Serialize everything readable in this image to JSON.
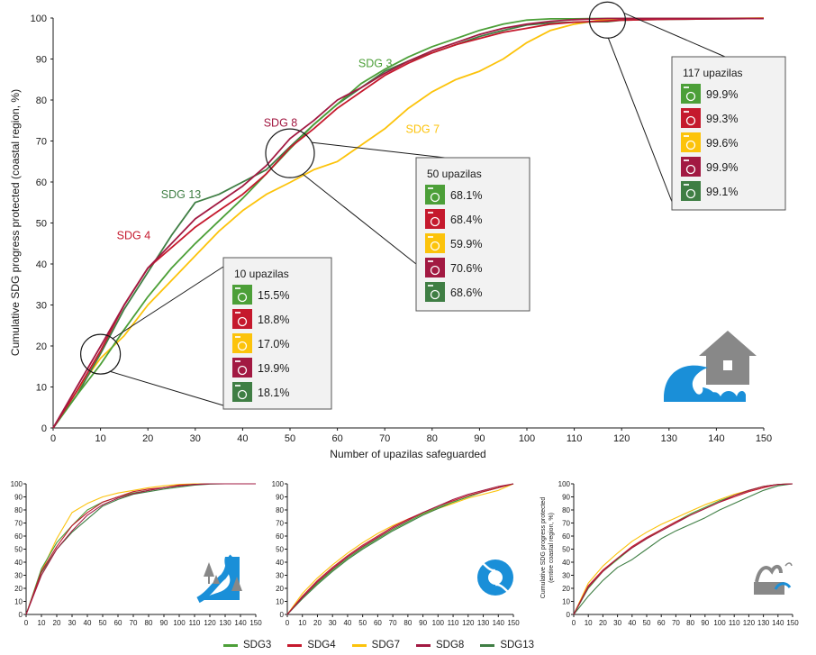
{
  "chart_data": [
    {
      "id": "main",
      "type": "line",
      "xlabel": "Number of upazilas safeguarded",
      "ylabel": "Cumulative SDG progress protected (coastal region, %)",
      "xlim": [
        0,
        150
      ],
      "ylim": [
        0,
        100
      ],
      "xticks": [
        0,
        10,
        20,
        30,
        40,
        50,
        60,
        70,
        80,
        90,
        100,
        110,
        120,
        130,
        140,
        150
      ],
      "yticks": [
        0,
        10,
        20,
        30,
        40,
        50,
        60,
        70,
        80,
        90,
        100
      ],
      "grid": false,
      "series": [
        {
          "name": "SDG 3",
          "key": "sdg3",
          "x": [
            0,
            5,
            10,
            15,
            20,
            25,
            30,
            35,
            40,
            45,
            50,
            55,
            60,
            65,
            70,
            75,
            80,
            85,
            90,
            95,
            100,
            105,
            110,
            115,
            117,
            120,
            130,
            140,
            150
          ],
          "y": [
            0,
            8,
            15.5,
            24,
            32,
            39,
            45,
            50.5,
            56,
            62,
            68.1,
            74,
            79,
            84,
            87.5,
            90.5,
            93,
            95,
            97,
            98.5,
            99.5,
            99.8,
            99.8,
            99.9,
            99.9,
            99.9,
            99.9,
            99.9,
            99.9
          ]
        },
        {
          "name": "SDG 4",
          "key": "sdg4",
          "x": [
            0,
            5,
            10,
            15,
            20,
            25,
            30,
            35,
            40,
            45,
            50,
            55,
            60,
            65,
            70,
            75,
            80,
            85,
            90,
            95,
            100,
            105,
            110,
            115,
            117,
            120,
            130,
            140,
            150
          ],
          "y": [
            0,
            9,
            18.8,
            30,
            39,
            44,
            49,
            53,
            57,
            62,
            68.4,
            73,
            78,
            82,
            86,
            89,
            91.5,
            93.5,
            95,
            96.5,
            97.5,
            98.5,
            99,
            99.2,
            99.3,
            99.5,
            99.7,
            99.8,
            99.9
          ]
        },
        {
          "name": "SDG 7",
          "key": "sdg7",
          "x": [
            0,
            5,
            10,
            15,
            20,
            25,
            30,
            35,
            40,
            45,
            50,
            55,
            60,
            65,
            70,
            75,
            80,
            85,
            90,
            95,
            100,
            105,
            110,
            115,
            117,
            120,
            130,
            140,
            150
          ],
          "y": [
            0,
            9,
            17,
            22.5,
            30,
            36,
            42,
            48,
            53,
            57,
            59.9,
            63,
            65,
            69,
            73,
            78,
            82,
            85,
            87,
            90,
            94,
            97,
            98.5,
            99.4,
            99.6,
            99.8,
            99.9,
            99.9,
            100
          ]
        },
        {
          "name": "SDG 8",
          "key": "sdg8",
          "x": [
            0,
            5,
            10,
            15,
            20,
            25,
            30,
            35,
            40,
            45,
            50,
            55,
            60,
            65,
            70,
            75,
            80,
            85,
            90,
            95,
            100,
            105,
            110,
            115,
            117,
            120,
            130,
            140,
            150
          ],
          "y": [
            0,
            10,
            19.9,
            30,
            39,
            45,
            51,
            55,
            59,
            64,
            70.6,
            75,
            80,
            83,
            86.5,
            89.5,
            92,
            94,
            96,
            97.5,
            98.5,
            99.2,
            99.6,
            99.8,
            99.9,
            99.9,
            99.9,
            99.9,
            99.9
          ]
        },
        {
          "name": "SDG 13",
          "key": "sdg13",
          "x": [
            0,
            5,
            10,
            15,
            20,
            25,
            30,
            35,
            40,
            45,
            50,
            55,
            60,
            65,
            70,
            75,
            80,
            85,
            90,
            95,
            100,
            105,
            110,
            115,
            117,
            120,
            130,
            140,
            150
          ],
          "y": [
            0,
            8,
            18.1,
            29,
            38,
            47,
            55,
            57,
            60,
            63,
            68.6,
            74,
            79,
            83,
            87,
            89.5,
            91.5,
            93.5,
            95.5,
            97,
            98.3,
            98.8,
            99,
            99.1,
            99.1,
            99.5,
            99.7,
            99.8,
            99.9
          ]
        }
      ],
      "line_labels": [
        {
          "text": "SDG 3",
          "key": "sdg3",
          "x": 68,
          "y": 88
        },
        {
          "text": "SDG 8",
          "key": "sdg8",
          "x": 48,
          "y": 73.5
        },
        {
          "text": "SDG 7",
          "key": "sdg7",
          "x": 78,
          "y": 72
        },
        {
          "text": "SDG 13",
          "key": "sdg13",
          "x": 27,
          "y": 56
        },
        {
          "text": "SDG 4",
          "key": "sdg4",
          "x": 17,
          "y": 46
        }
      ],
      "callouts": [
        {
          "title": "10 upazilas",
          "at_x": 10,
          "at_y": 18,
          "values": [
            "15.5%",
            "18.8%",
            "17.0%",
            "19.9%",
            "18.1%"
          ]
        },
        {
          "title": "50 upazilas",
          "at_x": 50,
          "at_y": 67,
          "values": [
            "68.1%",
            "68.4%",
            "59.9%",
            "70.6%",
            "68.6%"
          ]
        },
        {
          "title": "117 upazilas",
          "at_x": 117,
          "at_y": 99.5,
          "values": [
            "99.9%",
            "99.3%",
            "99.6%",
            "99.9%",
            "99.1%"
          ]
        }
      ],
      "icon": "coastal-flood-house-icon"
    },
    {
      "id": "riverine",
      "type": "line",
      "xlim": [
        0,
        150
      ],
      "ylim": [
        0,
        100
      ],
      "xticks": [
        0,
        10,
        20,
        30,
        40,
        50,
        60,
        70,
        80,
        90,
        100,
        110,
        120,
        130,
        140,
        150
      ],
      "yticks": [
        0,
        10,
        20,
        30,
        40,
        50,
        60,
        70,
        80,
        90,
        100
      ],
      "series": [
        {
          "name": "SDG3",
          "key": "sdg3",
          "x": [
            0,
            10,
            20,
            30,
            40,
            50,
            60,
            70,
            80,
            90,
            100,
            110,
            120,
            130,
            140,
            150
          ],
          "y": [
            0,
            35,
            55,
            68,
            80,
            86,
            90,
            93,
            95,
            97,
            98.5,
            99.5,
            100,
            100,
            100,
            100
          ]
        },
        {
          "name": "SDG4",
          "key": "sdg4",
          "x": [
            0,
            10,
            20,
            30,
            40,
            50,
            60,
            70,
            80,
            90,
            100,
            110,
            120,
            130,
            140,
            150
          ],
          "y": [
            0,
            33,
            52,
            68,
            78,
            86,
            90,
            94,
            96,
            97,
            99,
            99.5,
            100,
            100,
            100,
            100
          ]
        },
        {
          "name": "SDG7",
          "key": "sdg7",
          "x": [
            0,
            10,
            20,
            30,
            40,
            50,
            60,
            70,
            80,
            90,
            100,
            110,
            120,
            130,
            140,
            150
          ],
          "y": [
            0,
            33,
            58,
            78,
            85,
            90,
            93,
            95,
            97,
            98.5,
            99.5,
            100,
            100,
            100,
            100,
            100
          ]
        },
        {
          "name": "SDG8",
          "key": "sdg8",
          "x": [
            0,
            10,
            20,
            30,
            40,
            50,
            60,
            70,
            80,
            90,
            100,
            110,
            120,
            130,
            140,
            150
          ],
          "y": [
            0,
            30,
            50,
            64,
            76,
            84,
            89,
            92.5,
            95,
            97,
            98.5,
            99.5,
            100,
            100,
            100,
            100
          ]
        },
        {
          "name": "SDG13",
          "key": "sdg13",
          "x": [
            0,
            10,
            20,
            30,
            40,
            50,
            60,
            70,
            80,
            90,
            100,
            110,
            120,
            130,
            140,
            150
          ],
          "y": [
            0,
            32,
            50,
            63,
            73,
            83,
            88,
            92,
            94,
            96,
            97.5,
            99,
            99.8,
            100,
            100,
            100
          ]
        }
      ],
      "icon": "river-flood-icon"
    },
    {
      "id": "cyclone",
      "type": "line",
      "xlim": [
        0,
        150
      ],
      "ylim": [
        0,
        100
      ],
      "xticks": [
        0,
        10,
        20,
        30,
        40,
        50,
        60,
        70,
        80,
        90,
        100,
        110,
        120,
        130,
        140,
        150
      ],
      "yticks": [
        0,
        10,
        20,
        30,
        40,
        50,
        60,
        70,
        80,
        90,
        100
      ],
      "series": [
        {
          "name": "SDG3",
          "key": "sdg3",
          "x": [
            0,
            10,
            20,
            30,
            40,
            50,
            60,
            70,
            80,
            90,
            100,
            110,
            120,
            130,
            140,
            150
          ],
          "y": [
            0,
            13,
            24,
            34,
            43,
            51,
            58,
            65,
            71,
            77,
            82,
            86,
            90,
            94,
            97,
            100
          ]
        },
        {
          "name": "SDG4",
          "key": "sdg4",
          "x": [
            0,
            10,
            20,
            30,
            40,
            50,
            60,
            70,
            80,
            90,
            100,
            110,
            120,
            130,
            140,
            150
          ],
          "y": [
            0,
            14,
            26,
            36,
            45,
            53,
            60,
            67,
            73,
            78,
            83,
            87,
            91,
            94,
            97,
            100
          ]
        },
        {
          "name": "SDG7",
          "key": "sdg7",
          "x": [
            0,
            10,
            20,
            30,
            40,
            50,
            60,
            70,
            80,
            90,
            100,
            110,
            120,
            130,
            140,
            150
          ],
          "y": [
            0,
            16,
            28,
            38,
            47,
            55,
            62,
            68,
            73,
            77,
            81,
            85,
            89,
            92,
            95,
            100
          ]
        },
        {
          "name": "SDG8",
          "key": "sdg8",
          "x": [
            0,
            10,
            20,
            30,
            40,
            50,
            60,
            70,
            80,
            90,
            100,
            110,
            120,
            130,
            140,
            150
          ],
          "y": [
            0,
            13,
            25,
            35,
            44,
            52,
            59,
            66,
            72,
            78,
            83,
            88,
            92,
            95,
            98,
            100
          ]
        },
        {
          "name": "SDG13",
          "key": "sdg13",
          "x": [
            0,
            10,
            20,
            30,
            40,
            50,
            60,
            70,
            80,
            90,
            100,
            110,
            120,
            130,
            140,
            150
          ],
          "y": [
            0,
            12,
            23,
            33,
            42,
            50,
            57,
            64,
            70,
            76,
            81,
            86,
            90,
            94,
            97,
            100
          ]
        }
      ],
      "icon": "cyclone-icon"
    },
    {
      "id": "entire-coast",
      "type": "line",
      "ylabel": "Cumulative SDG progress protected (entire coastal region, %)",
      "xlim": [
        0,
        150
      ],
      "ylim": [
        0,
        100
      ],
      "xticks": [
        0,
        10,
        20,
        30,
        40,
        50,
        60,
        70,
        80,
        90,
        100,
        110,
        120,
        130,
        140,
        150
      ],
      "yticks": [
        0,
        10,
        20,
        30,
        40,
        50,
        60,
        70,
        80,
        90,
        100
      ],
      "series": [
        {
          "name": "SDG3",
          "key": "sdg3",
          "x": [
            0,
            10,
            20,
            30,
            40,
            50,
            60,
            70,
            80,
            90,
            100,
            110,
            120,
            130,
            140,
            150
          ],
          "y": [
            0,
            20,
            33,
            42,
            51,
            58,
            65,
            71,
            77,
            82,
            87,
            91,
            95,
            98,
            99.5,
            100
          ]
        },
        {
          "name": "SDG4",
          "key": "sdg4",
          "x": [
            0,
            10,
            20,
            30,
            40,
            50,
            60,
            70,
            80,
            90,
            100,
            110,
            120,
            130,
            140,
            150
          ],
          "y": [
            0,
            22,
            34,
            43,
            52,
            59,
            65,
            71,
            76,
            81,
            86,
            90,
            94,
            97,
            99.5,
            100
          ]
        },
        {
          "name": "SDG7",
          "key": "sdg7",
          "x": [
            0,
            10,
            20,
            30,
            40,
            50,
            60,
            70,
            80,
            90,
            100,
            110,
            120,
            130,
            140,
            150
          ],
          "y": [
            0,
            24,
            37,
            47,
            56,
            63,
            69,
            74,
            79,
            84,
            88,
            92,
            95,
            98,
            99.5,
            100
          ]
        },
        {
          "name": "SDG8",
          "key": "sdg8",
          "x": [
            0,
            10,
            20,
            30,
            40,
            50,
            60,
            70,
            80,
            90,
            100,
            110,
            120,
            130,
            140,
            150
          ],
          "y": [
            0,
            21,
            33,
            43,
            51,
            58,
            64,
            70,
            76,
            81,
            86,
            91,
            95,
            98,
            99.5,
            100
          ]
        },
        {
          "name": "SDG13",
          "key": "sdg13",
          "x": [
            0,
            10,
            20,
            30,
            40,
            50,
            60,
            70,
            80,
            90,
            100,
            110,
            120,
            130,
            140,
            150
          ],
          "y": [
            0,
            14,
            26,
            36,
            42,
            50,
            58,
            64,
            69,
            74,
            80,
            85,
            90,
            95,
            98.5,
            100
          ]
        }
      ],
      "icon": "coastal-erosion-icon"
    }
  ],
  "colors": {
    "sdg3": "#4c9f38",
    "sdg4": "#c5192d",
    "sdg7": "#fcc30b",
    "sdg8": "#a21942",
    "sdg13": "#3f7e44",
    "axis": "#1a1a1a",
    "icon_blue": "#1a8fd8",
    "icon_grey": "#888888"
  },
  "legend": [
    {
      "label": "SDG3",
      "key": "sdg3"
    },
    {
      "label": "SDG4",
      "key": "sdg4"
    },
    {
      "label": "SDG7",
      "key": "sdg7"
    },
    {
      "label": "SDG8",
      "key": "sdg8"
    },
    {
      "label": "SDG13",
      "key": "sdg13"
    }
  ]
}
